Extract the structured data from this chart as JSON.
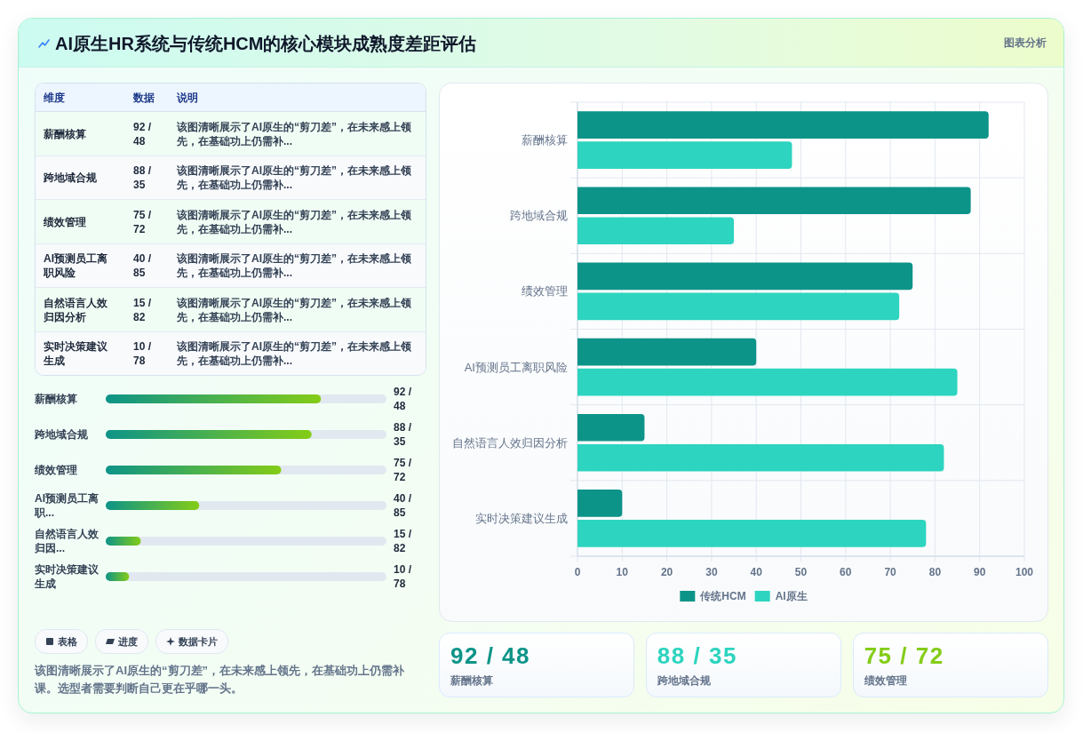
{
  "chart_data": [
    {
      "type": "other",
      "title": "AI原生HR系统与传统HCM的核心模块成熟度差距评估",
      "annotations": [
        "图表分析"
      ]
    },
    {
      "type": "other",
      "categories": [
        "薪酬核算",
        "跨地域合规",
        "绩效管理",
        "AI预测员工离职风险",
        "自然语言人效归因分析",
        "实时决策建议生成"
      ],
      "value_labels": [
        "92 / 48",
        "88 / 35",
        "75 / 72",
        "40 / 85",
        "15 / 82",
        "10 / 78"
      ],
      "annotations": [
        "维度",
        "数据",
        "说明",
        "该图清晰展示了AI原生的“剪刀差”，在未来感上领先，在基础功上仍需补...",
        "该图清晰展示了AI原生的“剪刀差”，在未来感上领先，在基础功上仍需补...",
        "该图清晰展示了AI原生的“剪刀差”，在未来感上领先，在基础功上仍需补...",
        "该图清晰展示了AI原生的“剪刀差”，在未来感上领先，在基础功上仍需补...",
        "该图清晰展示了AI原生的“剪刀差”，在未来感上领先，在基础功上仍需补...",
        "该图清晰展示了AI原生的“剪刀差”，在未来感上领先，在基础功上仍需补..."
      ]
    },
    {
      "type": "bar",
      "orientation": "horizontal",
      "categories": [
        "薪酬核算",
        "跨地域合规",
        "绩效管理",
        "AI预测员工离职...",
        "自然语言人效归因...",
        "实时决策建议生成"
      ],
      "values": [
        92,
        88,
        75,
        40,
        15,
        10
      ],
      "color": "#0d9488",
      "xlim": [
        0,
        120
      ],
      "value_labels": [
        "92 / 48",
        "88 / 35",
        "75 / 72",
        "40 / 85",
        "15 / 82",
        "10 / 78"
      ],
      "tick_labels": "y"
    },
    {
      "type": "other",
      "annotations": [
        "表格",
        "进度",
        "数据卡片",
        "该图清晰展示了AI原生的“剪刀差”，在未来感上领先，在基础功上仍需补课。选型者需要判断自己更在乎哪一头。"
      ]
    },
    {
      "type": "bar",
      "orientation": "horizontal",
      "categories": [
        "薪酬核算",
        "跨地域合规",
        "绩效管理",
        "AI预测员工离职风险",
        "自然语言人效归因分析",
        "实时决策建议生成"
      ],
      "series": [
        {
          "name": "传统HCM",
          "color": "#0d9488",
          "values": [
            92,
            88,
            75,
            40,
            15,
            10
          ]
        },
        {
          "name": "AI原生",
          "color": "#2dd4bf",
          "values": [
            48,
            35,
            72,
            85,
            82,
            78
          ]
        }
      ],
      "xlim": [
        0,
        100
      ],
      "xticks": [
        0,
        10,
        20,
        30,
        40,
        50,
        60,
        70,
        80,
        90,
        100
      ],
      "grid": true,
      "legend": "bottom"
    },
    {
      "type": "other",
      "categories": [
        "薪酬核算",
        "跨地域合规",
        "绩效管理"
      ],
      "value_labels": [
        "92 / 48",
        "88 / 35",
        "75 / 72"
      ]
    }
  ]
}
